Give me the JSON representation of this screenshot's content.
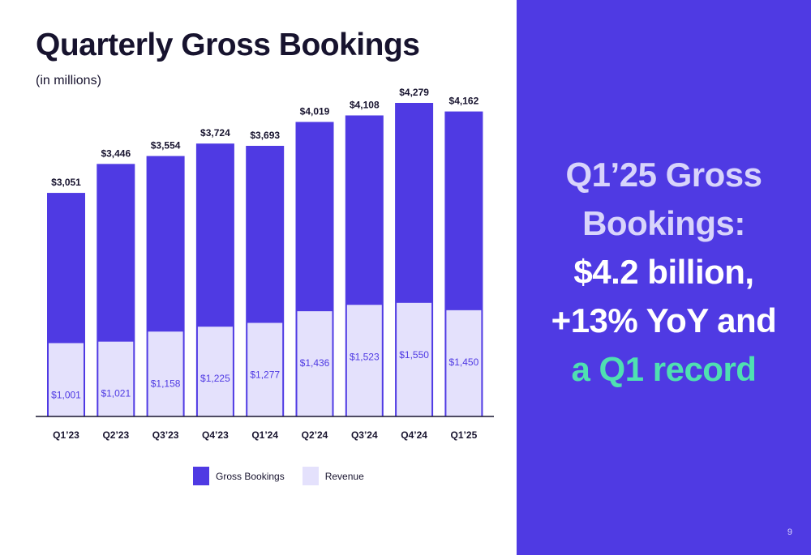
{
  "slide": {
    "title": "Quarterly Gross Bookings",
    "subtitle": "(in millions)",
    "page_number": "9"
  },
  "headline": {
    "line1": "Q1’25 Gross",
    "line2": "Bookings:",
    "line3": "$4.2 billion,",
    "line4": "+13% YoY and",
    "line5": "a Q1 record"
  },
  "colors": {
    "gross_bookings": "#4f3ae3",
    "revenue": "#e4e1fc",
    "panel": "#4f3ae3",
    "accent_green": "#4fe0b1",
    "text_dark": "#17132e"
  },
  "chart_data": {
    "type": "bar",
    "title": "Quarterly Gross Bookings",
    "subtitle": "(in millions)",
    "categories": [
      "Q1’23",
      "Q2’23",
      "Q3’23",
      "Q4’23",
      "Q1’24",
      "Q2’24",
      "Q3’24",
      "Q4’24",
      "Q1’25"
    ],
    "series": [
      {
        "name": "Gross Bookings",
        "values": [
          3051,
          3446,
          3554,
          3724,
          3693,
          4019,
          4108,
          4279,
          4162
        ],
        "labels": [
          "$3,051",
          "$3,446",
          "$3,554",
          "$3,724",
          "$3,693",
          "$4,019",
          "$4,108",
          "$4,279",
          "$4,162"
        ]
      },
      {
        "name": "Revenue",
        "values": [
          1001,
          1021,
          1158,
          1225,
          1277,
          1436,
          1523,
          1550,
          1450
        ],
        "labels": [
          "$1,001",
          "$1,021",
          "$1,158",
          "$1,225",
          "$1,277",
          "$1,436",
          "$1,523",
          "$1,550",
          "$1,450"
        ]
      }
    ],
    "overlay": true,
    "ylim": [
      0,
      4279
    ],
    "grid": false,
    "legend_position": "bottom-center"
  }
}
